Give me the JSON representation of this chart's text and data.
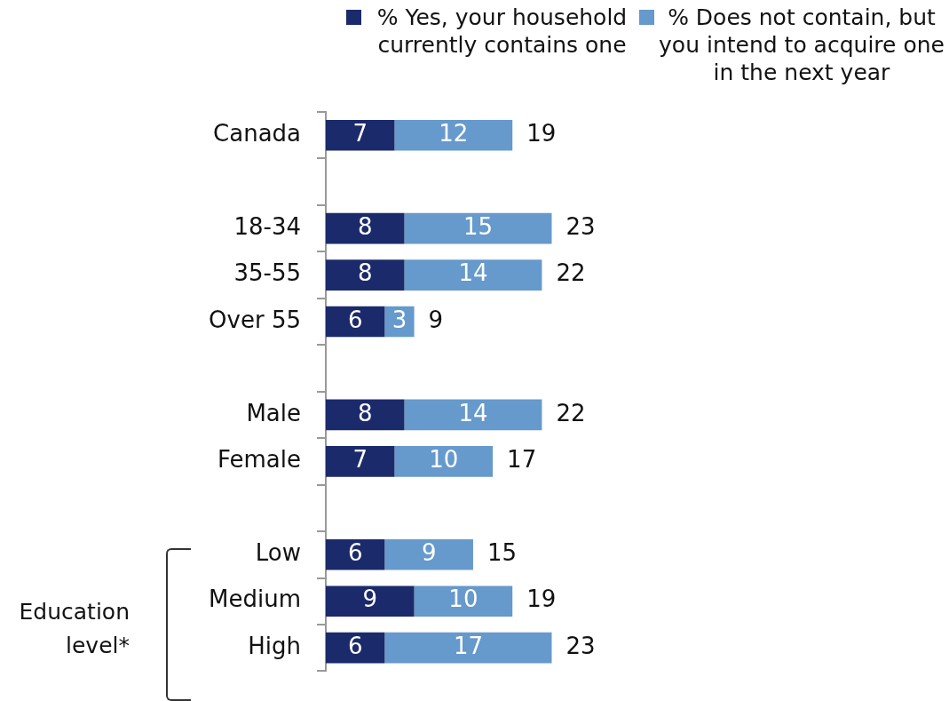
{
  "chart_data": {
    "type": "bar",
    "orientation": "horizontal",
    "stacked": true,
    "categories": [
      "Canada",
      null,
      "18-34",
      "35-55",
      "Over 55",
      null,
      "Male",
      "Female",
      null,
      "Low",
      "Medium",
      "High"
    ],
    "series": [
      {
        "name": "% Yes, your household currently contains one",
        "color": "#1b2a6b",
        "values": [
          7,
          null,
          8,
          8,
          6,
          null,
          8,
          7,
          null,
          6,
          9,
          6
        ]
      },
      {
        "name": "% Does not contain, but you intend to acquire one in the next year",
        "color": "#6699cc",
        "values": [
          12,
          null,
          15,
          14,
          3,
          null,
          14,
          10,
          null,
          9,
          10,
          17
        ]
      }
    ],
    "totals": [
      "19",
      null,
      "23",
      "22",
      "9",
      null,
      "22",
      "17",
      null,
      "15",
      "19",
      "23"
    ],
    "data_labels": true,
    "legend": "top right",
    "annotations": [
      "Education level*"
    ]
  }
}
